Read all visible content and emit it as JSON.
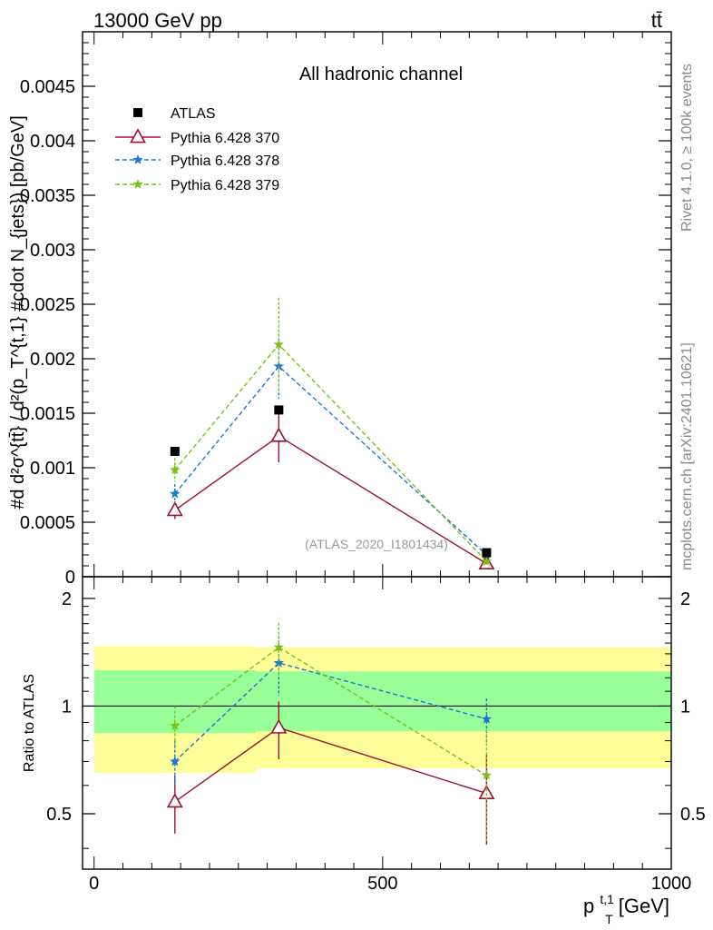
{
  "header": {
    "left": "13000 GeV pp",
    "right": "tt̄"
  },
  "side": {
    "rivet": "Rivet 4.1.0, ≥ 100k events",
    "mcplots": "mcplots.cern.ch [arXiv:2401.10621]"
  },
  "chart_data": [
    {
      "type": "line",
      "title": "All hadronic channel",
      "watermark": "(ATLAS_2020_I1801434)",
      "ylabel": "#d d²σ^{tt̄} / d²(p_T^{t,1} #cdot N_{jets}) [pb/GeV]",
      "ylim": [
        0,
        0.005
      ],
      "xlim": [
        -20,
        1000
      ],
      "yticks": [
        0,
        0.0005,
        0.001,
        0.0015,
        0.002,
        0.0025,
        0.003,
        0.0035,
        0.004,
        0.0045
      ],
      "ytick_labels": [
        "0",
        "0.0005",
        "0.001",
        "0.0015",
        "0.002",
        "0.0025",
        "0.003",
        "0.0035",
        "0.004",
        "0.0045"
      ],
      "legend": {
        "placement": "top-left",
        "entries": [
          "ATLAS",
          "Pythia 6.428 370",
          "Pythia 6.428 378",
          "Pythia 6.428 379"
        ]
      },
      "x": [
        140,
        320,
        680
      ],
      "data": {
        "name": "ATLAS",
        "color": "#000000",
        "values": [
          0.00115,
          0.00153,
          0.00022
        ]
      },
      "series": [
        {
          "name": "Pythia 6.428 370",
          "color": "#a0102c",
          "style": "solid",
          "marker": "triangle",
          "values": [
            0.00061,
            0.00129,
            0.00012
          ],
          "err": [
            8e-05,
            0.00024,
            3e-05
          ]
        },
        {
          "name": "Pythia 6.428 378",
          "color": "#1a76d2",
          "style": "dashed",
          "marker": "star",
          "values": [
            0.00076,
            0.00193,
            0.0002
          ],
          "err": [
            9e-05,
            0.0003,
            3e-05
          ]
        },
        {
          "name": "Pythia 6.428 379",
          "color": "#7cc01b",
          "style": "dashed",
          "marker": "star",
          "values": [
            0.00098,
            0.00213,
            0.00014
          ],
          "err": [
            0.00011,
            0.00043,
            3e-05
          ]
        }
      ]
    },
    {
      "type": "line",
      "ylabel": "Ratio to ATLAS",
      "xlabel": "p_T^{t,1} [GeV]",
      "xlabel_main": "p",
      "xlabel_sub": "T",
      "xlabel_sup": "t,1",
      "xlabel_unit": " [GeV]",
      "ylim": [
        0.35,
        2.3
      ],
      "yticks": [
        0.5,
        1,
        2
      ],
      "ytick_labels": [
        "0.5",
        "1",
        "2"
      ],
      "xticks": [
        0,
        500,
        1000
      ],
      "xtick_labels": [
        "0",
        "500",
        "1000"
      ],
      "bins": [
        {
          "lo": 0,
          "hi": 280,
          "band_yellow": [
            0.65,
            1.47
          ],
          "band_green": [
            0.84,
            1.26
          ]
        },
        {
          "lo": 280,
          "hi": 1000,
          "band_yellow": [
            0.67,
            1.46
          ],
          "band_green": [
            0.85,
            1.25
          ]
        }
      ],
      "x": [
        140,
        320,
        680
      ],
      "series": [
        {
          "name": "Pythia 6.428 370",
          "color": "#a0102c",
          "style": "solid",
          "marker": "triangle",
          "values": [
            0.54,
            0.87,
            0.57
          ],
          "err": [
            0.1,
            0.16,
            0.16
          ]
        },
        {
          "name": "Pythia 6.428 378",
          "color": "#1a76d2",
          "style": "dashed",
          "marker": "star",
          "values": [
            0.7,
            1.32,
            0.92
          ],
          "err": [
            0.1,
            0.25,
            0.13
          ]
        },
        {
          "name": "Pythia 6.428 379",
          "color": "#7cc01b",
          "style": "dashed",
          "marker": "star",
          "values": [
            0.88,
            1.46,
            0.64
          ],
          "err": [
            0.12,
            0.25,
            0.22
          ]
        }
      ]
    }
  ]
}
